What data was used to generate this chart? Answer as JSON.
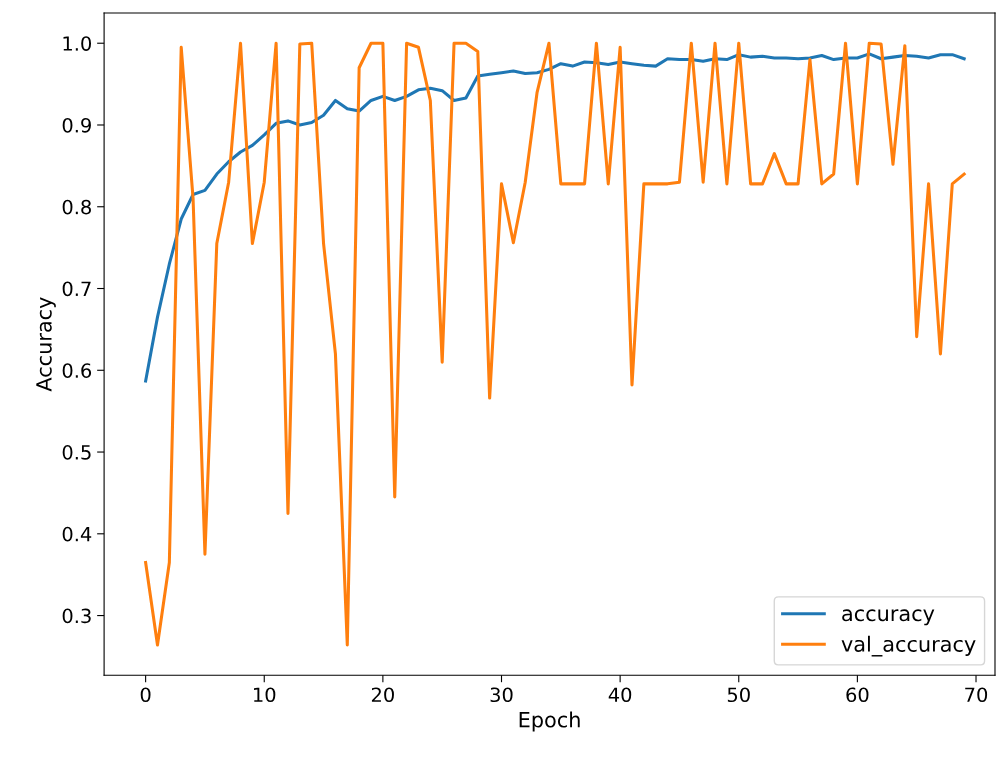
{
  "chart_data": {
    "type": "line",
    "xlabel": "Epoch",
    "ylabel": "Accuracy",
    "x": [
      0,
      1,
      2,
      3,
      4,
      5,
      6,
      7,
      8,
      9,
      10,
      11,
      12,
      13,
      14,
      15,
      16,
      17,
      18,
      19,
      20,
      21,
      22,
      23,
      24,
      25,
      26,
      27,
      28,
      29,
      30,
      31,
      32,
      33,
      34,
      35,
      36,
      37,
      38,
      39,
      40,
      41,
      42,
      43,
      44,
      45,
      46,
      47,
      48,
      49,
      50,
      51,
      52,
      53,
      54,
      55,
      56,
      57,
      58,
      59,
      60,
      61,
      62,
      63,
      64,
      65,
      66,
      67,
      68,
      69
    ],
    "series": [
      {
        "name": "accuracy",
        "color": "#1f77b4",
        "values": [
          0.587,
          0.665,
          0.73,
          0.785,
          0.815,
          0.82,
          0.84,
          0.855,
          0.867,
          0.875,
          0.888,
          0.902,
          0.905,
          0.9,
          0.903,
          0.912,
          0.93,
          0.92,
          0.917,
          0.93,
          0.935,
          0.93,
          0.935,
          0.943,
          0.945,
          0.942,
          0.93,
          0.933,
          0.96,
          0.962,
          0.964,
          0.966,
          0.963,
          0.964,
          0.968,
          0.975,
          0.972,
          0.977,
          0.976,
          0.974,
          0.977,
          0.975,
          0.973,
          0.972,
          0.981,
          0.98,
          0.98,
          0.978,
          0.981,
          0.98,
          0.986,
          0.983,
          0.984,
          0.982,
          0.982,
          0.981,
          0.982,
          0.985,
          0.98,
          0.982,
          0.982,
          0.987,
          0.981,
          0.983,
          0.985,
          0.984,
          0.982,
          0.986,
          0.986,
          0.981
        ]
      },
      {
        "name": "val_accuracy",
        "color": "#ff7f0e",
        "values": [
          0.365,
          0.264,
          0.365,
          0.995,
          0.81,
          0.375,
          0.755,
          0.83,
          1.0,
          0.755,
          0.83,
          1.0,
          0.425,
          0.999,
          1.0,
          0.755,
          0.62,
          0.264,
          0.97,
          1.0,
          1.0,
          0.445,
          1.0,
          0.995,
          0.93,
          0.61,
          1.0,
          1.0,
          0.99,
          0.566,
          0.828,
          0.756,
          0.83,
          0.94,
          1.0,
          0.828,
          0.828,
          0.828,
          1.0,
          0.828,
          0.995,
          0.582,
          0.828,
          0.828,
          0.828,
          0.83,
          1.0,
          0.83,
          1.0,
          0.828,
          1.0,
          0.828,
          0.828,
          0.865,
          0.828,
          0.828,
          0.98,
          0.828,
          0.84,
          1.0,
          0.828,
          1.0,
          0.999,
          0.852,
          0.997,
          0.641,
          0.828,
          0.62,
          0.828,
          0.84
        ]
      }
    ],
    "xlim": [
      -3.5,
      71.6
    ],
    "xticks": [
      0,
      10,
      20,
      30,
      40,
      50,
      60,
      70
    ],
    "ylim": [
      0.227,
      1.037
    ],
    "yticks": [
      {
        "value": 0.3,
        "label": "0.3"
      },
      {
        "value": 0.4,
        "label": "0.4"
      },
      {
        "value": 0.5,
        "label": "0.5"
      },
      {
        "value": 0.6,
        "label": "0.6"
      },
      {
        "value": 0.7,
        "label": "0.7"
      },
      {
        "value": 0.8,
        "label": "0.8"
      },
      {
        "value": 0.9,
        "label": "0.9"
      },
      {
        "value": 1.0,
        "label": "1.0"
      }
    ],
    "legend": "bottom right",
    "grid": false
  }
}
